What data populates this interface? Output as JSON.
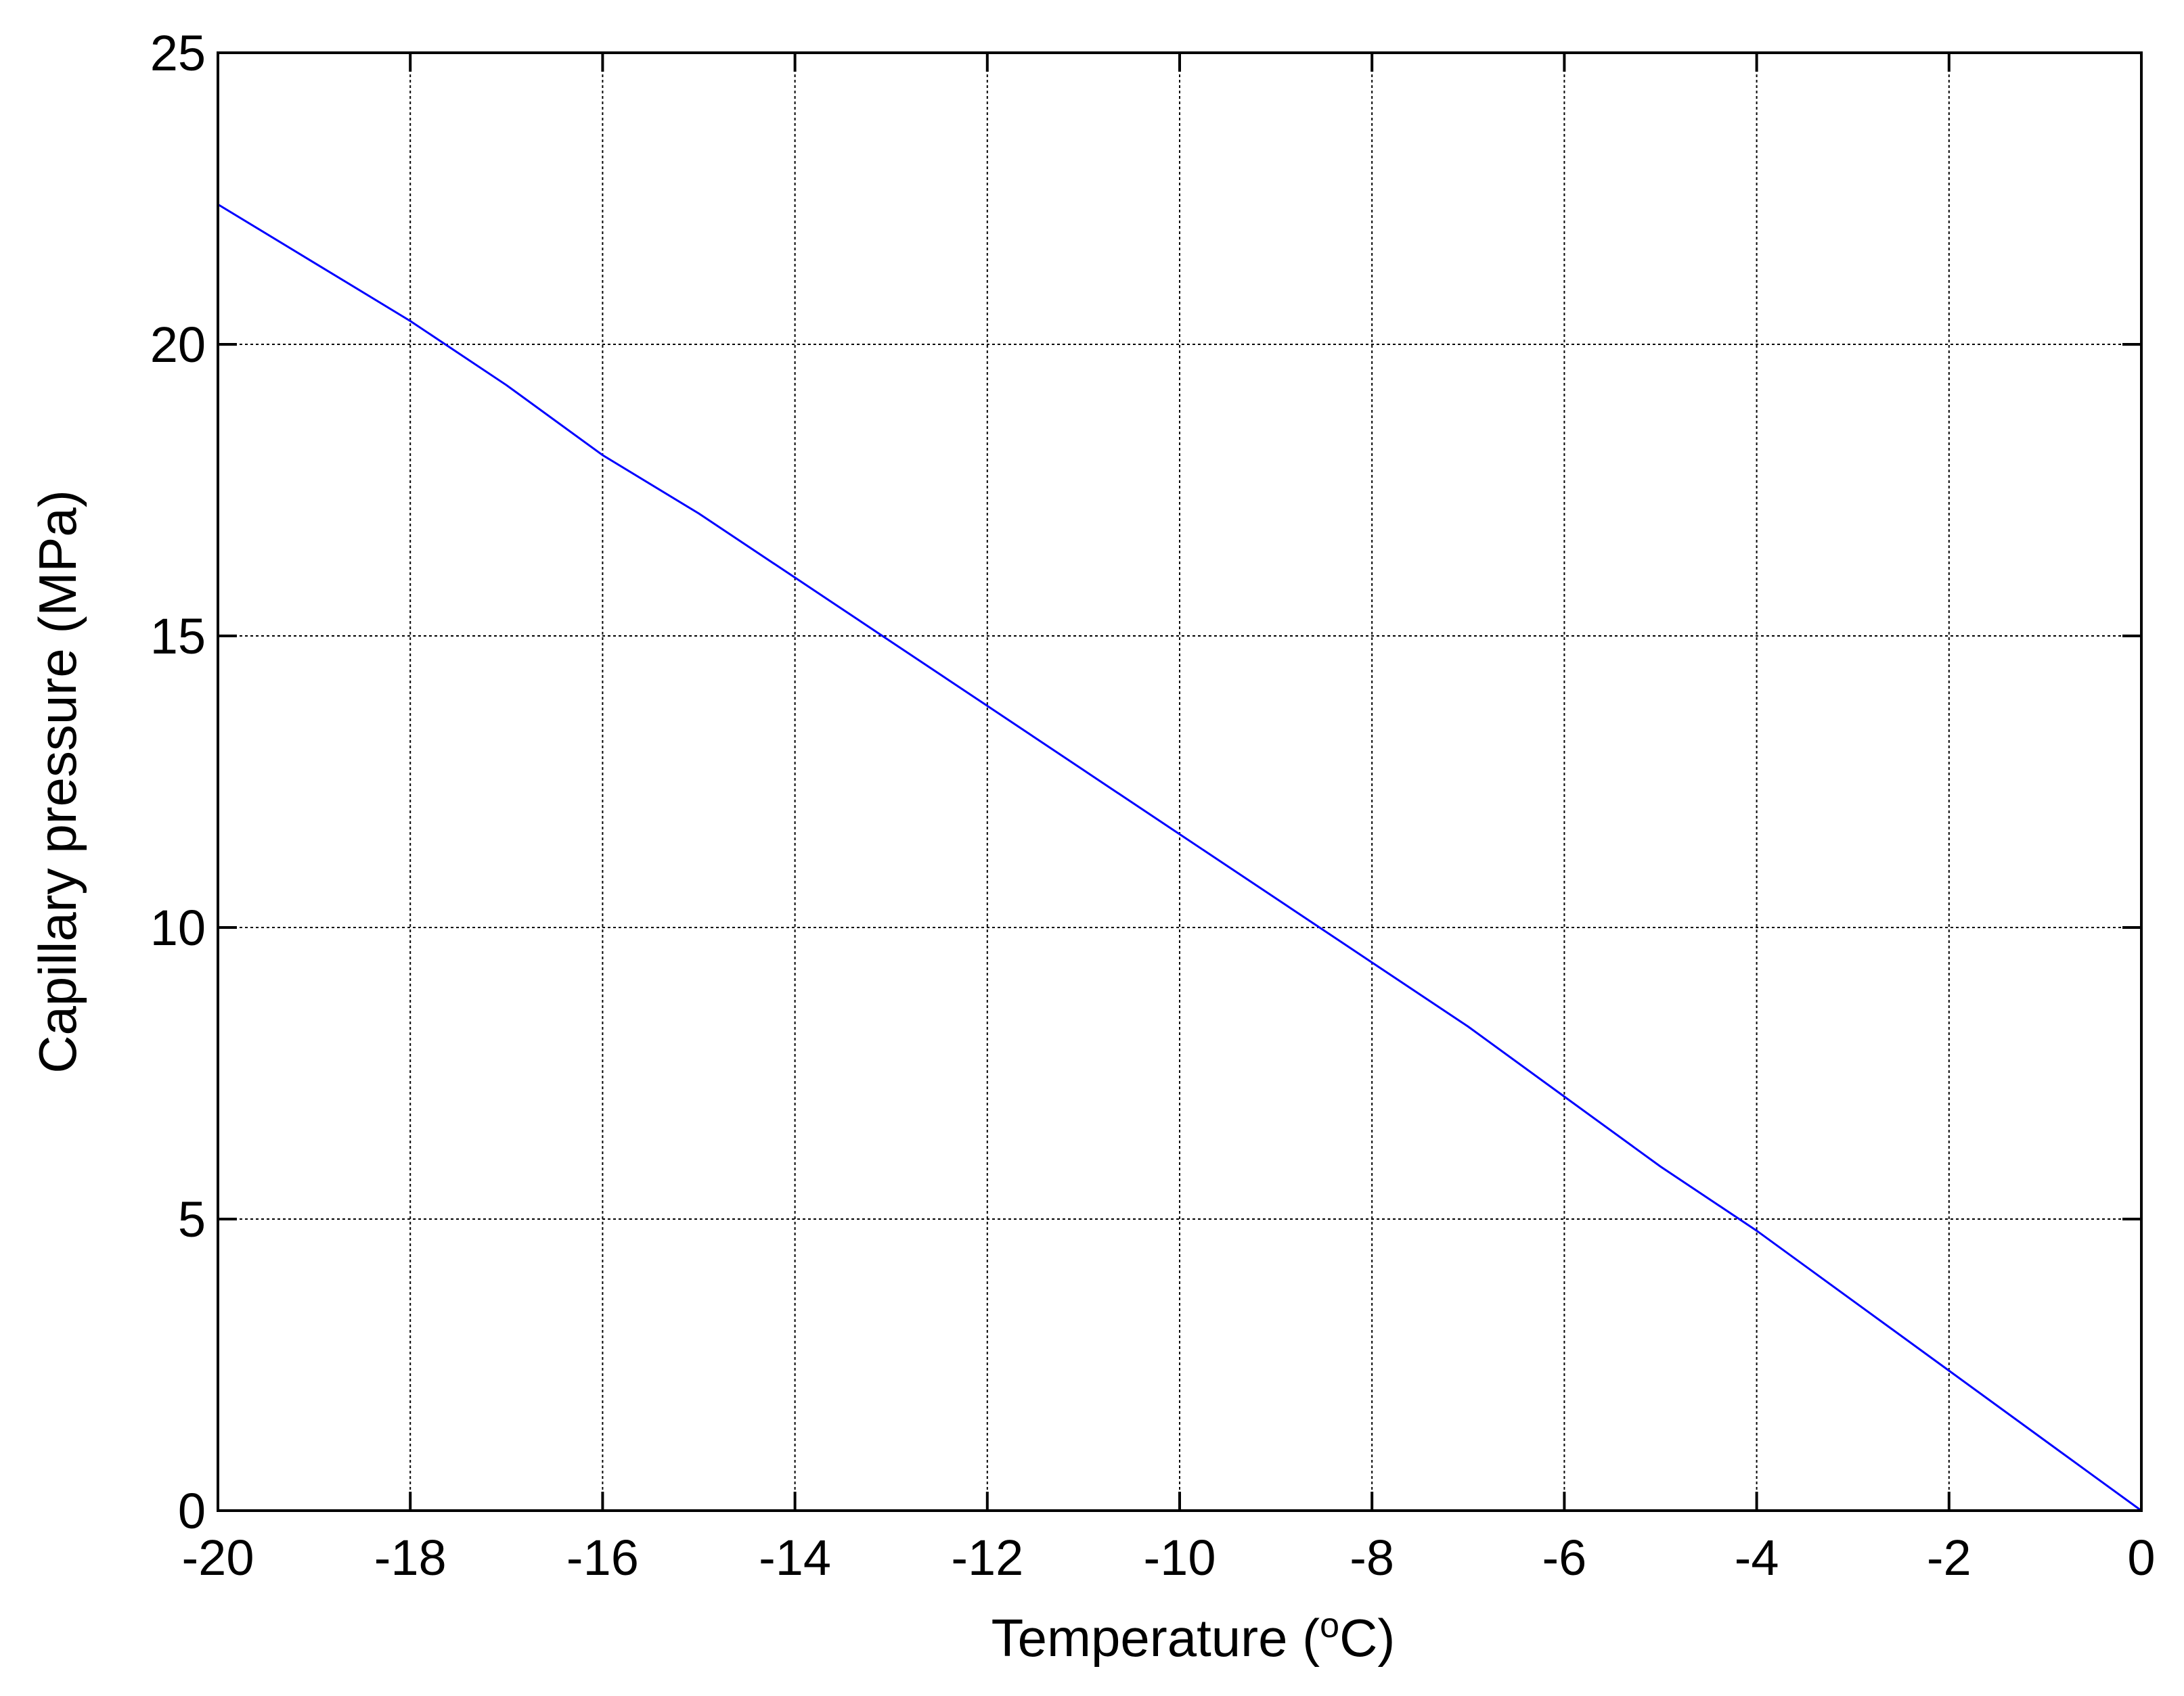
{
  "chart_data": {
    "type": "line",
    "title": "",
    "xlabel": "Temperature (",
    "xlabel_sup": "o",
    "xlabel_tail": "C)",
    "ylabel": "Capillary pressure (MPa)",
    "xlim": [
      -20,
      0
    ],
    "ylim": [
      0,
      25
    ],
    "xticks": [
      -20,
      -18,
      -16,
      -14,
      -12,
      -10,
      -8,
      -6,
      -4,
      -2,
      0
    ],
    "yticks": [
      0,
      5,
      10,
      15,
      20,
      25
    ],
    "grid": true,
    "series": [
      {
        "color": "#0000ff",
        "x": [
          -20,
          -19,
          -18,
          -17,
          -16,
          -15,
          -14,
          -13,
          -12,
          -11,
          -10,
          -9,
          -8,
          -7,
          -6,
          -5,
          -4,
          -3,
          -2,
          -1,
          -0.5,
          0
        ],
        "y": [
          22.4,
          21.4,
          20.4,
          19.3,
          18.1,
          17.1,
          16.0,
          14.9,
          13.8,
          12.7,
          11.6,
          10.5,
          9.4,
          8.3,
          7.1,
          5.9,
          4.8,
          3.6,
          2.4,
          1.2,
          0.6,
          0.0
        ]
      }
    ]
  }
}
